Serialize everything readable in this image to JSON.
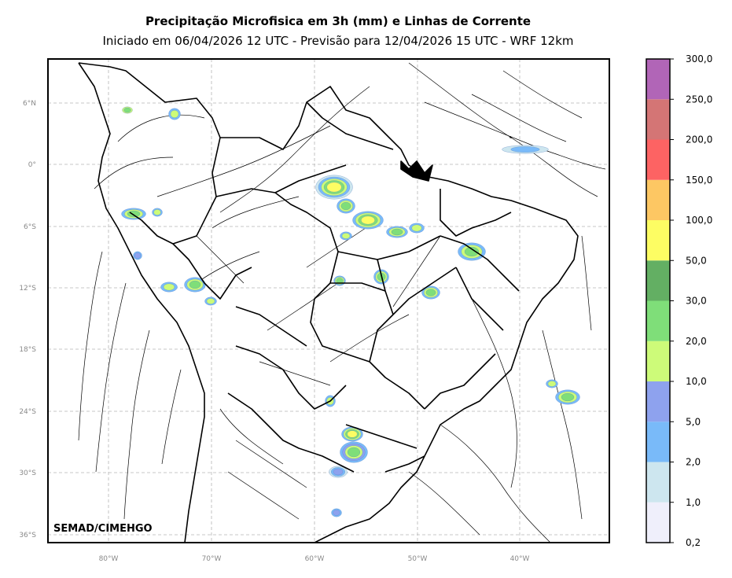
{
  "title": "Precipitação Microfisica em 3h (mm) e Linhas de Corrente",
  "subtitle": "Iniciado em 06/04/2026 12 UTC - Previsão para 12/04/2026 15 UTC - WRF 12km",
  "credit": "SEMAD/CIMEHGO",
  "lat_ticks": [
    "6°N",
    "0°",
    "6°S",
    "12°S",
    "18°S",
    "24°S",
    "30°S",
    "36°S"
  ],
  "lon_ticks": [
    "80°W",
    "70°W",
    "60°W",
    "50°W",
    "40°W"
  ],
  "colorbar": {
    "labels": [
      "0,2",
      "1,0",
      "2,0",
      "5,0",
      "10,0",
      "20,0",
      "30,0",
      "50,0",
      "100,0",
      "150,0",
      "200,0",
      "250,0",
      "300,0"
    ],
    "colors": [
      "#efeffb",
      "#cde6ef",
      "#79baf9",
      "#8ea2ee",
      "#cdfb79",
      "#7fde79",
      "#63af63",
      "#fdfd63",
      "#fdc763",
      "#fd6363",
      "#d47575",
      "#b165b7"
    ]
  }
}
